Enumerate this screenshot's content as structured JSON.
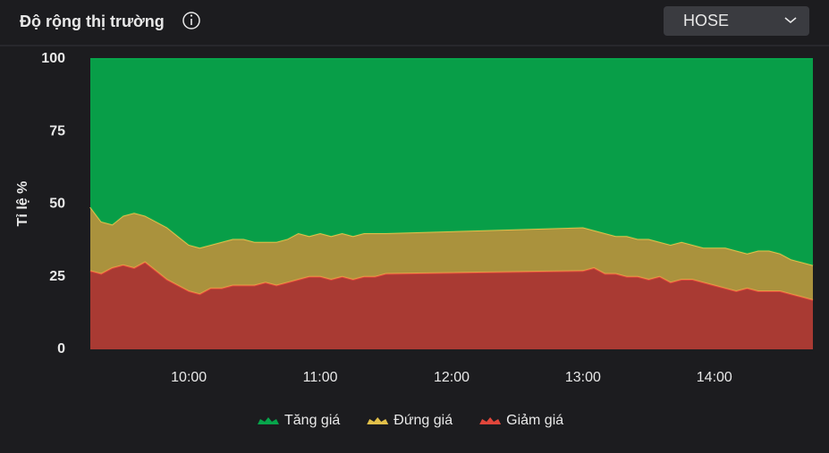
{
  "header": {
    "title": "Độ rộng thị trường",
    "exchange": "HOSE"
  },
  "chart_data": {
    "type": "stacked_area",
    "ylabel": "Tỉ lệ %",
    "x": [
      "09:15",
      "09:20",
      "09:25",
      "09:30",
      "09:35",
      "09:40",
      "09:45",
      "09:50",
      "09:55",
      "10:00",
      "10:05",
      "10:10",
      "10:15",
      "10:20",
      "10:25",
      "10:30",
      "10:35",
      "10:40",
      "10:45",
      "10:50",
      "10:55",
      "11:00",
      "11:05",
      "11:10",
      "11:15",
      "11:20",
      "11:25",
      "11:30",
      "13:00",
      "13:05",
      "13:10",
      "13:15",
      "13:20",
      "13:25",
      "13:30",
      "13:35",
      "13:40",
      "13:45",
      "13:50",
      "13:55",
      "14:00",
      "14:05",
      "14:10",
      "14:15",
      "14:20",
      "14:25",
      "14:30",
      "14:35",
      "14:40",
      "14:45"
    ],
    "series": [
      {
        "name": "Tăng giá",
        "color": "#07a54b",
        "values": [
          51,
          56,
          57,
          54,
          53,
          54,
          56,
          58,
          61,
          64,
          65,
          64,
          63,
          62,
          62,
          63,
          63,
          63,
          62,
          60,
          61,
          60,
          61,
          60,
          61,
          60,
          60,
          60,
          58,
          59,
          60,
          61,
          61,
          62,
          62,
          63,
          64,
          63,
          64,
          65,
          65,
          65,
          66,
          67,
          66,
          66,
          67,
          69,
          70,
          71
        ]
      },
      {
        "name": "Đứng giá",
        "color": "#e2c04a",
        "values": [
          22,
          18,
          15,
          17,
          19,
          16,
          17,
          18,
          17,
          16,
          16,
          15,
          16,
          16,
          16,
          15,
          14,
          15,
          15,
          16,
          14,
          15,
          15,
          15,
          15,
          15,
          15,
          14,
          15,
          13,
          14,
          13,
          14,
          13,
          14,
          12,
          13,
          13,
          12,
          12,
          13,
          14,
          14,
          12,
          14,
          14,
          13,
          12,
          12,
          12
        ]
      },
      {
        "name": "Giảm giá",
        "color": "#e0463b",
        "values": [
          27,
          26,
          28,
          29,
          28,
          30,
          27,
          24,
          22,
          20,
          19,
          21,
          21,
          22,
          22,
          22,
          23,
          22,
          23,
          24,
          25,
          25,
          24,
          25,
          24,
          25,
          25,
          26,
          27,
          28,
          26,
          26,
          25,
          25,
          24,
          25,
          23,
          24,
          24,
          23,
          22,
          21,
          20,
          21,
          20,
          20,
          20,
          19,
          18,
          17
        ]
      }
    ],
    "xlim": [
      "09:15",
      "14:45"
    ],
    "xticks": [
      "10:00",
      "11:00",
      "12:00",
      "13:00",
      "14:00"
    ],
    "ylim": [
      0,
      100
    ],
    "yticks": [
      0,
      25,
      50,
      75,
      100
    ],
    "grid": false
  }
}
